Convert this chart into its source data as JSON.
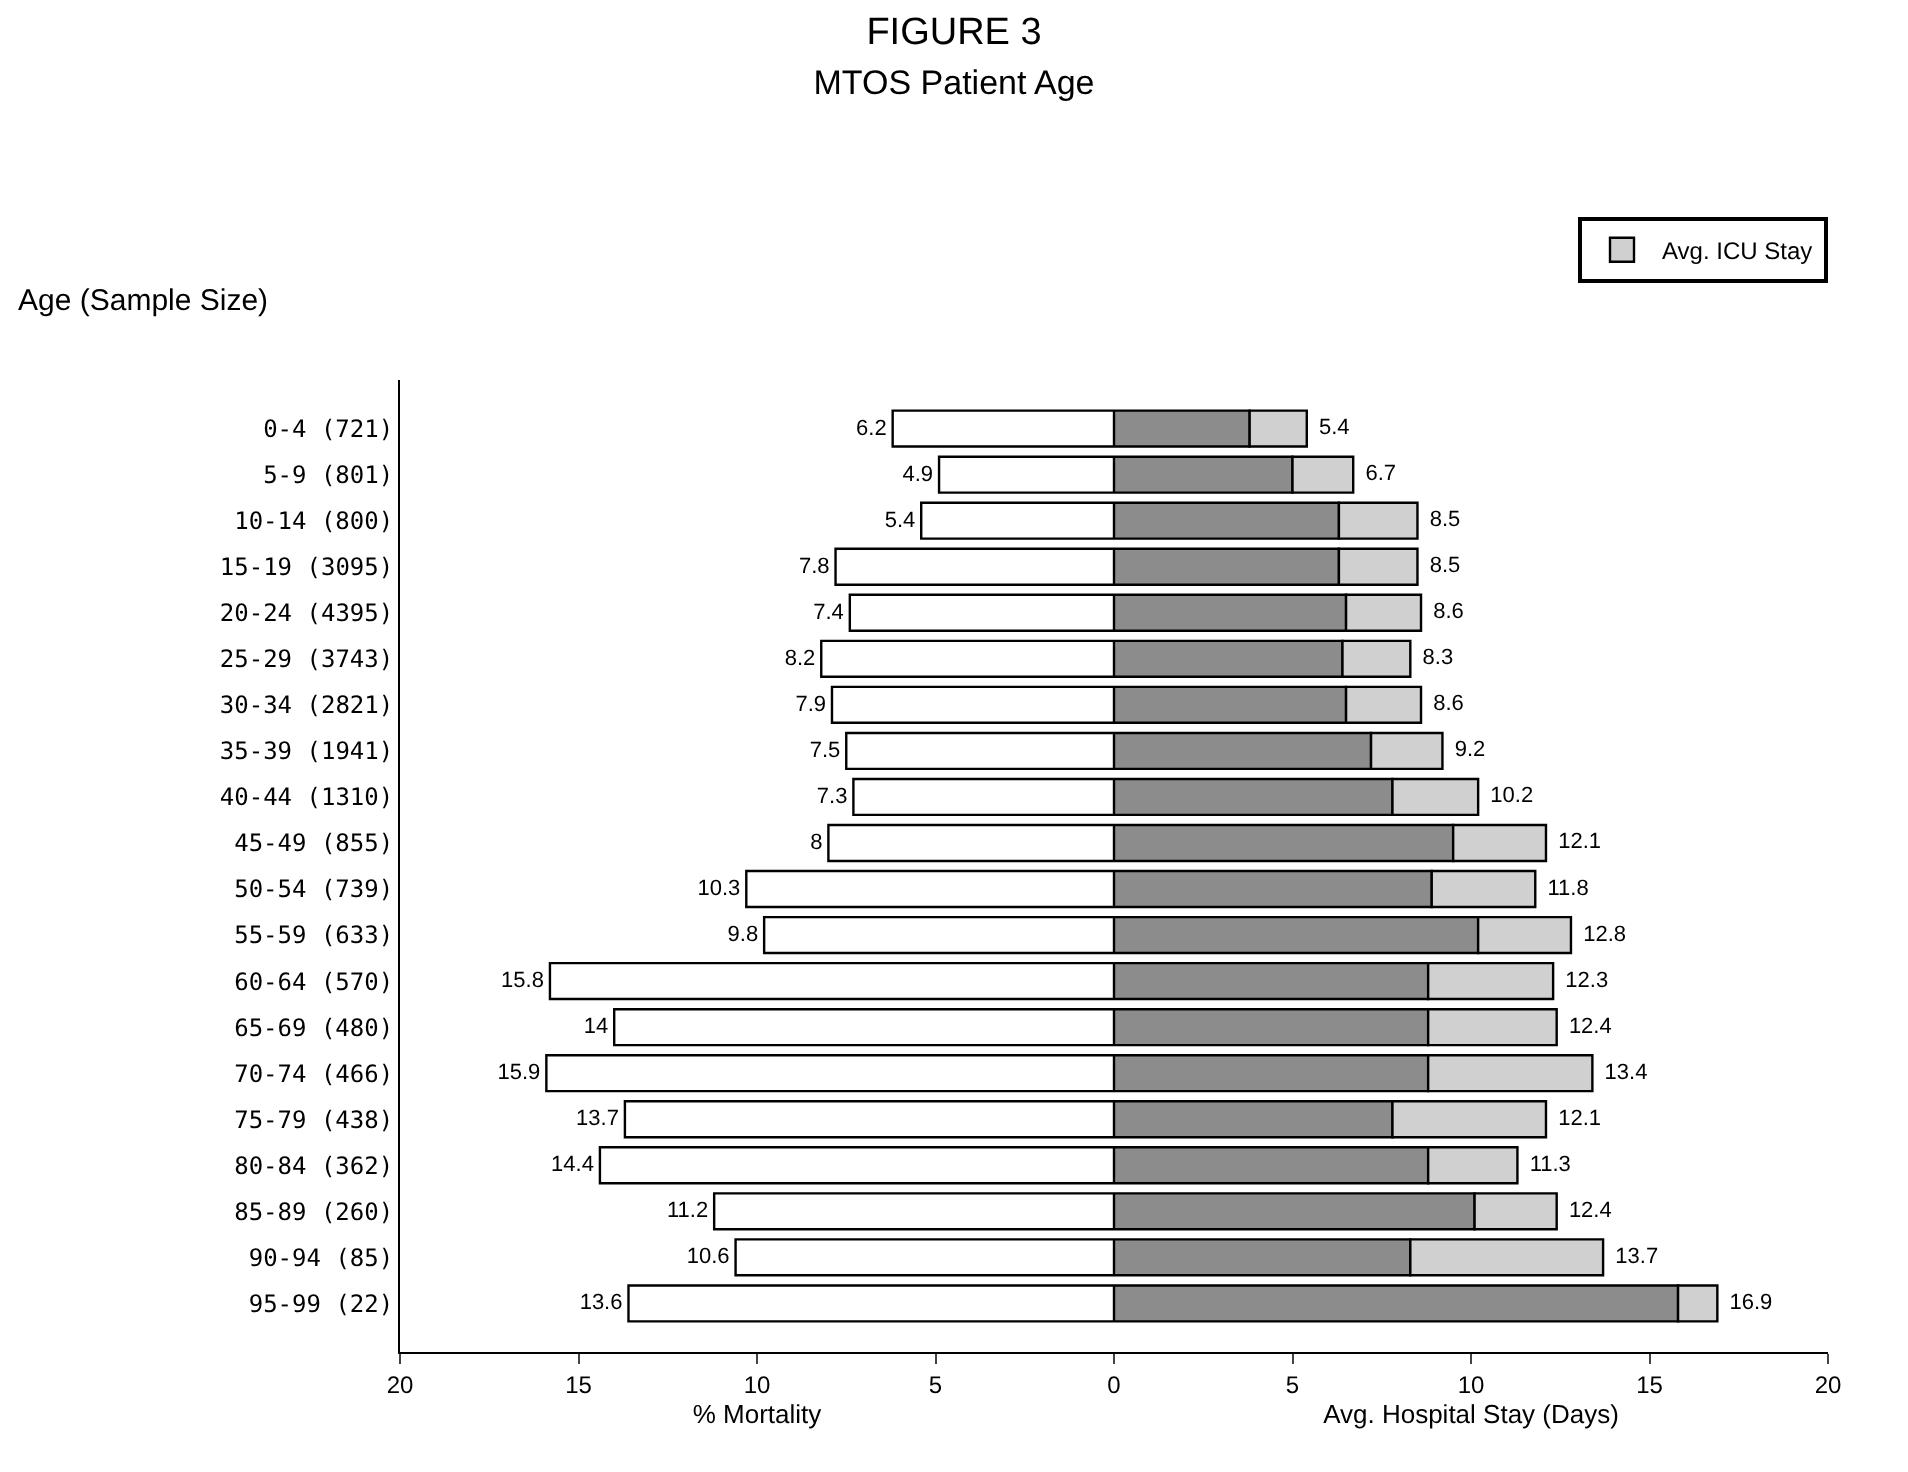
{
  "chart_data": [
    {
      "type": "bar",
      "title": "FIGURE 3",
      "subtitle": "MTOS Patient Age",
      "ylabel": "Age (Sample Size)",
      "xlabel": "% Mortality",
      "orientation": "horizontal",
      "grid": false,
      "data_labels": true,
      "categories": [
        "0-4 (721)",
        "5-9 (801)",
        "10-14 (800)",
        "15-19 (3095)",
        "20-24 (4395)",
        "25-29 (3743)",
        "30-34 (2821)",
        "35-39 (1941)",
        "40-44 (1310)",
        "45-49 (855)",
        "50-54 (739)",
        "55-59 (633)",
        "60-64 (570)",
        "65-69 (480)",
        "70-74 (466)",
        "75-79 (438)",
        "80-84 (362)",
        "85-89 (260)",
        "90-94 (85)",
        "95-99 (22)"
      ],
      "series": [
        {
          "color": "#ffffff",
          "values": [
            6.2,
            4.9,
            5.4,
            7.8,
            7.4,
            8.2,
            7.9,
            7.5,
            7.3,
            8,
            10.3,
            9.8,
            15.8,
            14,
            15.9,
            13.7,
            14.4,
            11.2,
            10.6,
            13.6
          ]
        }
      ],
      "xlim": [
        20,
        0
      ],
      "xticks": [
        20,
        15,
        10,
        5,
        {
          "value": 0,
          "label": null
        }
      ]
    },
    {
      "type": "bar",
      "xlabel": "Avg. Hospital Stay (Days)",
      "orientation": "horizontal",
      "stacked": true,
      "legend": "top right",
      "grid": false,
      "tick_labels": "x",
      "categories": [
        "0-4 (721)",
        "5-9 (801)",
        "10-14 (800)",
        "15-19 (3095)",
        "20-24 (4395)",
        "25-29 (3743)",
        "30-34 (2821)",
        "35-39 (1941)",
        "40-44 (1310)",
        "45-49 (855)",
        "50-54 (739)",
        "55-59 (633)",
        "60-64 (570)",
        "65-69 (480)",
        "70-74 (466)",
        "75-79 (438)",
        "80-84 (362)",
        "85-89 (260)",
        "90-94 (85)",
        "95-99 (22)"
      ],
      "series": [
        {
          "color": "#8c8c8c",
          "values": [
            3.8,
            5.0,
            6.3,
            6.3,
            6.5,
            6.4,
            6.5,
            7.2,
            7.8,
            9.5,
            8.9,
            10.2,
            8.8,
            8.8,
            8.8,
            7.8,
            8.8,
            10.1,
            8.3,
            15.8
          ]
        },
        {
          "name": "Avg. ICU Stay",
          "color": "#d0d0d0",
          "values": [
            1.6,
            1.7,
            2.2,
            2.2,
            2.1,
            1.9,
            2.1,
            2.0,
            2.4,
            2.6,
            2.9,
            2.6,
            3.5,
            3.6,
            4.6,
            4.3,
            2.5,
            2.3,
            5.4,
            1.1
          ]
        }
      ],
      "totals": [
        "5.4",
        "6.7",
        "8.5",
        "8.5",
        "8.6",
        "8.3",
        "8.6",
        "9.2",
        "10.2",
        "12.1",
        "11.8",
        "12.8",
        "12.3",
        "12.4",
        "13.4",
        "12.1",
        "11.3",
        "12.4",
        "13.7",
        "16.9"
      ],
      "xlim": [
        0,
        20
      ],
      "xticks": [
        0,
        5,
        10,
        15,
        20
      ]
    }
  ]
}
